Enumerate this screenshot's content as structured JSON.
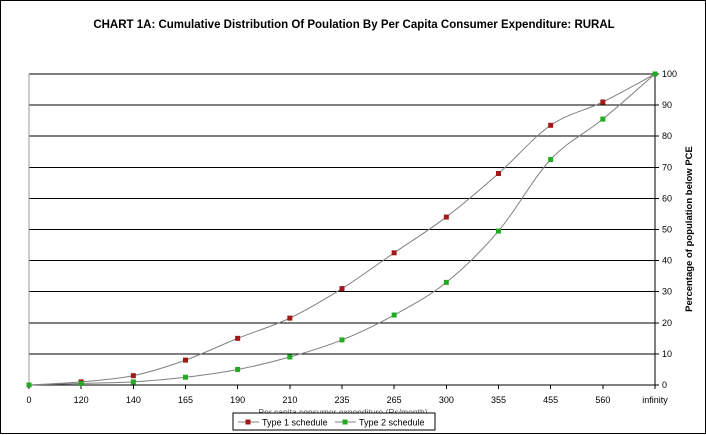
{
  "chart_data": {
    "type": "line",
    "title": "CHART 1A: Cumulative Distribution Of Poulation By Per Capita Consumer Expenditure: RURAL",
    "xlabel": "Per capita consumer expenditure (Rs/month)",
    "ylabel": "Percentage of population below PCE",
    "categories": [
      "0",
      "120",
      "140",
      "165",
      "190",
      "210",
      "235",
      "265",
      "300",
      "355",
      "455",
      "560",
      "infinity"
    ],
    "ylim": [
      0,
      100
    ],
    "yticks": [
      "0",
      "10",
      "20",
      "30",
      "40",
      "50",
      "60",
      "70",
      "80",
      "90",
      "100"
    ],
    "y_axis_side": "right",
    "grid": "horizontal",
    "legend_position": "bottom",
    "series": [
      {
        "name": "Type 1 schedule",
        "color": "#a01818",
        "marker": "square",
        "values": [
          0,
          1,
          3,
          8,
          15,
          21.5,
          31,
          42.5,
          54,
          68,
          83.5,
          91,
          100
        ]
      },
      {
        "name": "Type 2 schedule",
        "color": "#22aa22",
        "marker": "square",
        "values": [
          0,
          0.5,
          1,
          2.5,
          5,
          9,
          14.5,
          22.5,
          33,
          49.5,
          72.5,
          85.5,
          100
        ]
      }
    ]
  }
}
